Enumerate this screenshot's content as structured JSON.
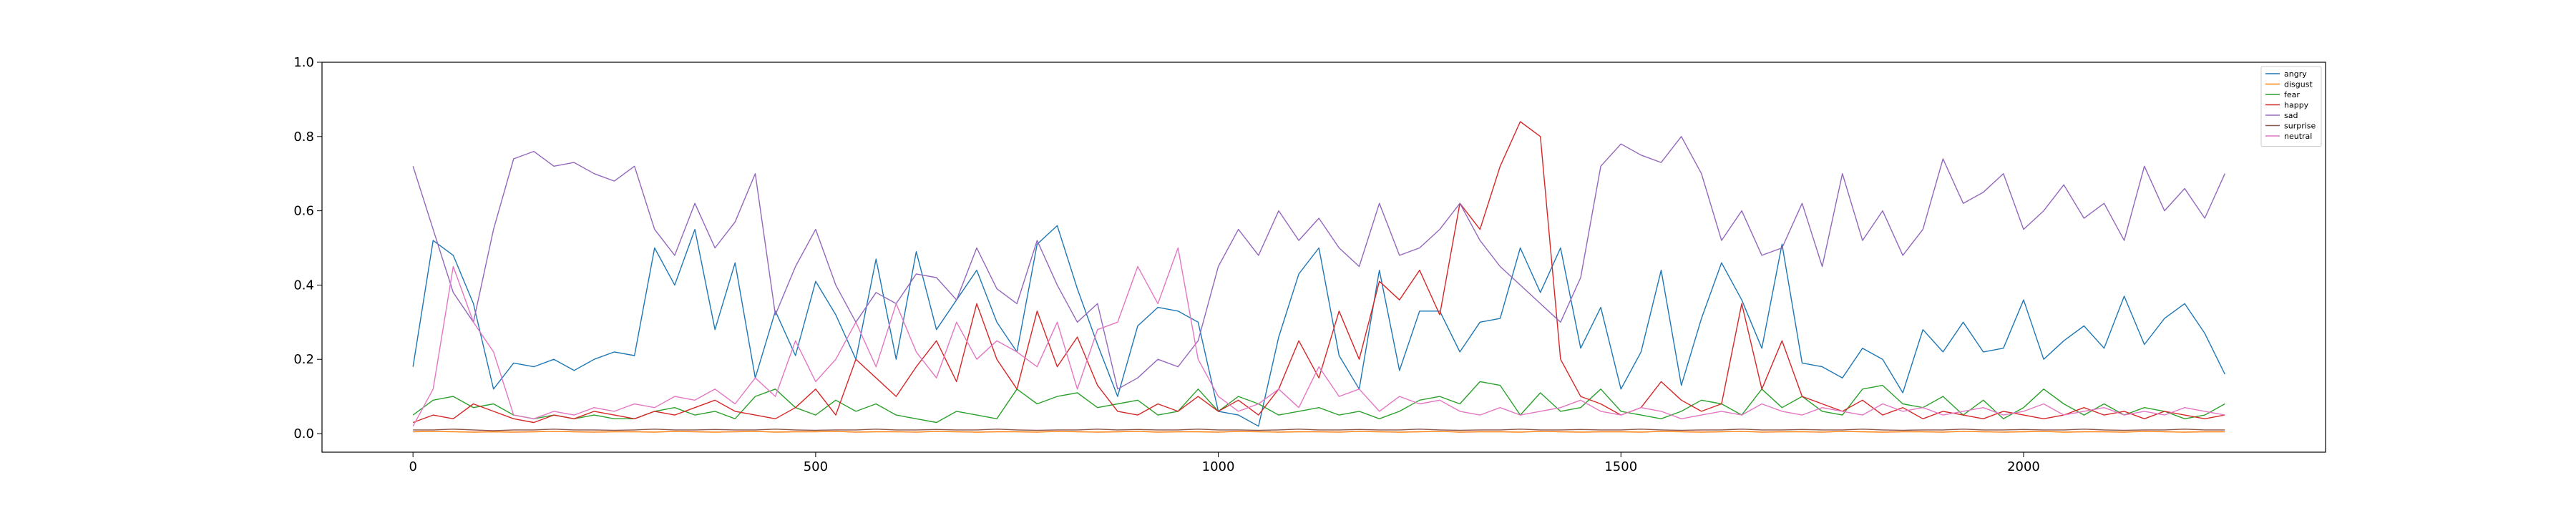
{
  "chart_data": {
    "type": "line",
    "title": "",
    "xlabel": "",
    "ylabel": "",
    "xlim": [
      -113,
      2375
    ],
    "ylim": [
      -0.05,
      1.0
    ],
    "xticks": [
      0,
      500,
      1000,
      1500,
      2000
    ],
    "yticks": [
      0.0,
      0.2,
      0.4,
      0.6,
      0.8,
      1.0
    ],
    "xtick_labels": [
      "0",
      "500",
      "1000",
      "1500",
      "2000"
    ],
    "ytick_labels": [
      "0.0",
      "0.2",
      "0.4",
      "0.6",
      "0.8",
      "1.0"
    ],
    "grid": false,
    "legend_position": "top-right",
    "x_step": 25,
    "series": [
      {
        "name": "angry",
        "color": "#1f77b4",
        "values": [
          0.18,
          0.52,
          0.48,
          0.35,
          0.12,
          0.19,
          0.18,
          0.2,
          0.17,
          0.2,
          0.22,
          0.21,
          0.5,
          0.4,
          0.55,
          0.28,
          0.46,
          0.15,
          0.33,
          0.21,
          0.41,
          0.32,
          0.2,
          0.47,
          0.2,
          0.49,
          0.28,
          0.36,
          0.44,
          0.3,
          0.22,
          0.51,
          0.56,
          0.39,
          0.24,
          0.1,
          0.29,
          0.34,
          0.33,
          0.3,
          0.06,
          0.05,
          0.02,
          0.26,
          0.43,
          0.5,
          0.21,
          0.12,
          0.44,
          0.17,
          0.33,
          0.33,
          0.22,
          0.3,
          0.31,
          0.5,
          0.38,
          0.5,
          0.23,
          0.34,
          0.12,
          0.22,
          0.44,
          0.13,
          0.31,
          0.46,
          0.36,
          0.23,
          0.51,
          0.19,
          0.18,
          0.15,
          0.23,
          0.2,
          0.11,
          0.28,
          0.22,
          0.3,
          0.22,
          0.23,
          0.36,
          0.2,
          0.25,
          0.29,
          0.23,
          0.37,
          0.24,
          0.31,
          0.35,
          0.27,
          0.16
        ]
      },
      {
        "name": "disgust",
        "color": "#ff7f0e",
        "values": [
          0.005,
          0.006,
          0.005,
          0.004,
          0.005,
          0.004,
          0.005,
          0.006,
          0.005,
          0.004,
          0.005,
          0.005,
          0.004,
          0.006,
          0.005,
          0.004,
          0.005,
          0.006,
          0.004,
          0.005,
          0.005,
          0.006,
          0.004,
          0.005,
          0.005,
          0.004,
          0.006,
          0.005,
          0.004,
          0.005,
          0.005,
          0.004,
          0.006,
          0.005,
          0.004,
          0.005,
          0.006,
          0.004,
          0.005,
          0.005,
          0.004,
          0.006,
          0.005,
          0.004,
          0.005,
          0.005,
          0.004,
          0.006,
          0.005,
          0.004,
          0.005,
          0.006,
          0.004,
          0.005,
          0.005,
          0.004,
          0.006,
          0.005,
          0.004,
          0.005,
          0.005,
          0.004,
          0.006,
          0.005,
          0.004,
          0.005,
          0.006,
          0.004,
          0.005,
          0.005,
          0.004,
          0.006,
          0.005,
          0.004,
          0.005,
          0.005,
          0.004,
          0.006,
          0.005,
          0.004,
          0.005,
          0.006,
          0.004,
          0.005,
          0.005,
          0.004,
          0.006,
          0.005,
          0.004,
          0.005,
          0.005
        ]
      },
      {
        "name": "fear",
        "color": "#2ca02c",
        "values": [
          0.05,
          0.09,
          0.1,
          0.07,
          0.08,
          0.05,
          0.04,
          0.05,
          0.04,
          0.05,
          0.04,
          0.04,
          0.06,
          0.07,
          0.05,
          0.06,
          0.04,
          0.1,
          0.12,
          0.07,
          0.05,
          0.09,
          0.06,
          0.08,
          0.05,
          0.04,
          0.03,
          0.06,
          0.05,
          0.04,
          0.12,
          0.08,
          0.1,
          0.11,
          0.07,
          0.08,
          0.09,
          0.05,
          0.06,
          0.12,
          0.06,
          0.1,
          0.08,
          0.05,
          0.06,
          0.07,
          0.05,
          0.06,
          0.04,
          0.06,
          0.09,
          0.1,
          0.08,
          0.14,
          0.13,
          0.05,
          0.11,
          0.06,
          0.07,
          0.12,
          0.06,
          0.05,
          0.04,
          0.06,
          0.09,
          0.08,
          0.05,
          0.12,
          0.07,
          0.1,
          0.06,
          0.05,
          0.12,
          0.13,
          0.08,
          0.07,
          0.1,
          0.05,
          0.09,
          0.04,
          0.07,
          0.12,
          0.08,
          0.05,
          0.08,
          0.05,
          0.07,
          0.06,
          0.04,
          0.05,
          0.08
        ]
      },
      {
        "name": "happy",
        "color": "#d62728",
        "values": [
          0.03,
          0.05,
          0.04,
          0.08,
          0.06,
          0.04,
          0.03,
          0.05,
          0.04,
          0.06,
          0.05,
          0.04,
          0.06,
          0.05,
          0.07,
          0.09,
          0.06,
          0.05,
          0.04,
          0.07,
          0.12,
          0.05,
          0.2,
          0.15,
          0.1,
          0.18,
          0.25,
          0.14,
          0.35,
          0.2,
          0.12,
          0.33,
          0.18,
          0.26,
          0.13,
          0.06,
          0.05,
          0.08,
          0.06,
          0.1,
          0.06,
          0.09,
          0.05,
          0.12,
          0.25,
          0.15,
          0.33,
          0.2,
          0.41,
          0.36,
          0.44,
          0.32,
          0.62,
          0.55,
          0.72,
          0.84,
          0.8,
          0.2,
          0.1,
          0.08,
          0.05,
          0.07,
          0.14,
          0.09,
          0.06,
          0.08,
          0.35,
          0.12,
          0.25,
          0.1,
          0.08,
          0.06,
          0.09,
          0.05,
          0.07,
          0.04,
          0.06,
          0.05,
          0.04,
          0.06,
          0.05,
          0.04,
          0.05,
          0.07,
          0.05,
          0.06,
          0.04,
          0.06,
          0.05,
          0.04,
          0.05
        ]
      },
      {
        "name": "sad",
        "color": "#9467bd",
        "values": [
          0.72,
          0.55,
          0.38,
          0.3,
          0.55,
          0.74,
          0.76,
          0.72,
          0.73,
          0.7,
          0.68,
          0.72,
          0.55,
          0.48,
          0.62,
          0.5,
          0.57,
          0.7,
          0.32,
          0.45,
          0.55,
          0.4,
          0.3,
          0.38,
          0.35,
          0.43,
          0.42,
          0.36,
          0.5,
          0.39,
          0.35,
          0.52,
          0.4,
          0.3,
          0.35,
          0.12,
          0.15,
          0.2,
          0.18,
          0.25,
          0.45,
          0.55,
          0.48,
          0.6,
          0.52,
          0.58,
          0.5,
          0.45,
          0.62,
          0.48,
          0.5,
          0.55,
          0.62,
          0.52,
          0.45,
          0.4,
          0.35,
          0.3,
          0.42,
          0.72,
          0.78,
          0.75,
          0.73,
          0.8,
          0.7,
          0.52,
          0.6,
          0.48,
          0.5,
          0.62,
          0.45,
          0.7,
          0.52,
          0.6,
          0.48,
          0.55,
          0.74,
          0.62,
          0.65,
          0.7,
          0.55,
          0.6,
          0.67,
          0.58,
          0.62,
          0.52,
          0.72,
          0.6,
          0.66,
          0.58,
          0.7
        ]
      },
      {
        "name": "surprise",
        "color": "#8c564b",
        "values": [
          0.01,
          0.01,
          0.012,
          0.01,
          0.008,
          0.01,
          0.01,
          0.012,
          0.01,
          0.01,
          0.009,
          0.01,
          0.012,
          0.01,
          0.01,
          0.011,
          0.01,
          0.01,
          0.012,
          0.01,
          0.009,
          0.01,
          0.01,
          0.012,
          0.01,
          0.01,
          0.011,
          0.01,
          0.01,
          0.012,
          0.01,
          0.009,
          0.01,
          0.01,
          0.012,
          0.01,
          0.011,
          0.01,
          0.01,
          0.012,
          0.01,
          0.01,
          0.009,
          0.01,
          0.012,
          0.01,
          0.01,
          0.011,
          0.01,
          0.01,
          0.012,
          0.01,
          0.009,
          0.01,
          0.01,
          0.012,
          0.01,
          0.01,
          0.011,
          0.01,
          0.01,
          0.012,
          0.01,
          0.009,
          0.01,
          0.01,
          0.012,
          0.01,
          0.01,
          0.011,
          0.01,
          0.01,
          0.012,
          0.01,
          0.009,
          0.01,
          0.01,
          0.012,
          0.01,
          0.01,
          0.011,
          0.01,
          0.01,
          0.012,
          0.01,
          0.009,
          0.01,
          0.01,
          0.012,
          0.01,
          0.01
        ]
      },
      {
        "name": "neutral",
        "color": "#e377c2",
        "values": [
          0.02,
          0.12,
          0.45,
          0.3,
          0.22,
          0.05,
          0.04,
          0.06,
          0.05,
          0.07,
          0.06,
          0.08,
          0.07,
          0.1,
          0.09,
          0.12,
          0.08,
          0.15,
          0.1,
          0.25,
          0.14,
          0.2,
          0.3,
          0.18,
          0.35,
          0.22,
          0.15,
          0.3,
          0.2,
          0.25,
          0.22,
          0.18,
          0.3,
          0.12,
          0.28,
          0.3,
          0.45,
          0.35,
          0.5,
          0.2,
          0.1,
          0.06,
          0.08,
          0.12,
          0.07,
          0.18,
          0.1,
          0.12,
          0.06,
          0.1,
          0.08,
          0.09,
          0.06,
          0.05,
          0.07,
          0.05,
          0.06,
          0.07,
          0.09,
          0.06,
          0.05,
          0.07,
          0.06,
          0.04,
          0.05,
          0.06,
          0.05,
          0.08,
          0.06,
          0.05,
          0.07,
          0.06,
          0.05,
          0.08,
          0.06,
          0.07,
          0.05,
          0.06,
          0.07,
          0.05,
          0.06,
          0.08,
          0.05,
          0.06,
          0.07,
          0.05,
          0.06,
          0.05,
          0.07,
          0.06,
          0.05
        ]
      }
    ]
  }
}
